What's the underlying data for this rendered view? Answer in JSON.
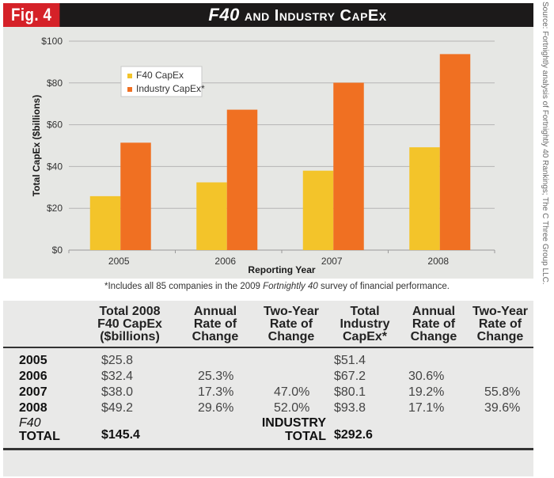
{
  "header": {
    "fig_label": "Fig. 4",
    "title_italic": "F40",
    "title_rest": "and Industry CapEx"
  },
  "source_note": "Source: Fortnightly analysis of Fortnightly 40 Rankings; The C Three Group LLC.",
  "chart_data": {
    "type": "bar",
    "title": "F40 and Industry CapEx",
    "xlabel": "Reporting Year",
    "ylabel": "Total CapEx ($billions)",
    "categories": [
      "2005",
      "2006",
      "2007",
      "2008"
    ],
    "series": [
      {
        "name": "F40 CapEx",
        "color": "#f3c42a",
        "values": [
          25.8,
          32.4,
          38.0,
          49.2
        ]
      },
      {
        "name": "Industry CapEx*",
        "color": "#f07022",
        "values": [
          51.4,
          67.2,
          80.1,
          93.8
        ]
      }
    ],
    "ylim": [
      0,
      100
    ],
    "yticks": [
      0,
      20,
      40,
      60,
      80,
      100
    ],
    "ytick_labels": [
      "$0",
      "$20",
      "$40",
      "$60",
      "$80",
      "$100"
    ],
    "grid": true,
    "legend_position": "top-left"
  },
  "footnote": {
    "pre": "*Includes all 85 companies in the 2009 ",
    "italic": "Fortnightly 40",
    "post": " survey of financial performance."
  },
  "table": {
    "headers": [
      "",
      "Total 2008 F40 CapEx ($billions)",
      "Annual Rate of Change",
      "Two-Year Rate of Change",
      "Total Industry CapEx*",
      "Annual Rate of Change",
      "Two-Year Rate of Change"
    ],
    "header_lines": [
      [
        ""
      ],
      [
        "Total 2008",
        "F40 CapEx",
        "($billions)"
      ],
      [
        "Annual",
        "Rate of",
        "Change"
      ],
      [
        "Two-Year",
        "Rate of",
        "Change"
      ],
      [
        "Total",
        "Industry",
        "CapEx*"
      ],
      [
        "Annual",
        "Rate of",
        "Change"
      ],
      [
        "Two-Year",
        "Rate of",
        "Change"
      ]
    ],
    "rows": [
      [
        "2005",
        "$25.8",
        "",
        "",
        "$51.4",
        "",
        ""
      ],
      [
        "2006",
        "$32.4",
        "25.3%",
        "",
        "$67.2",
        "30.6%",
        ""
      ],
      [
        "2007",
        "$38.0",
        "17.3%",
        "47.0%",
        "$80.1",
        "19.2%",
        "55.8%"
      ],
      [
        "2008",
        "$49.2",
        "29.6%",
        "52.0%",
        "$93.8",
        "17.1%",
        "39.6%"
      ]
    ],
    "total": {
      "f40_label_italic": "F40",
      "f40_label": "TOTAL",
      "f40_value": "$145.4",
      "industry_label_1": "INDUSTRY",
      "industry_label_2": "TOTAL",
      "industry_value": "$292.6"
    }
  }
}
